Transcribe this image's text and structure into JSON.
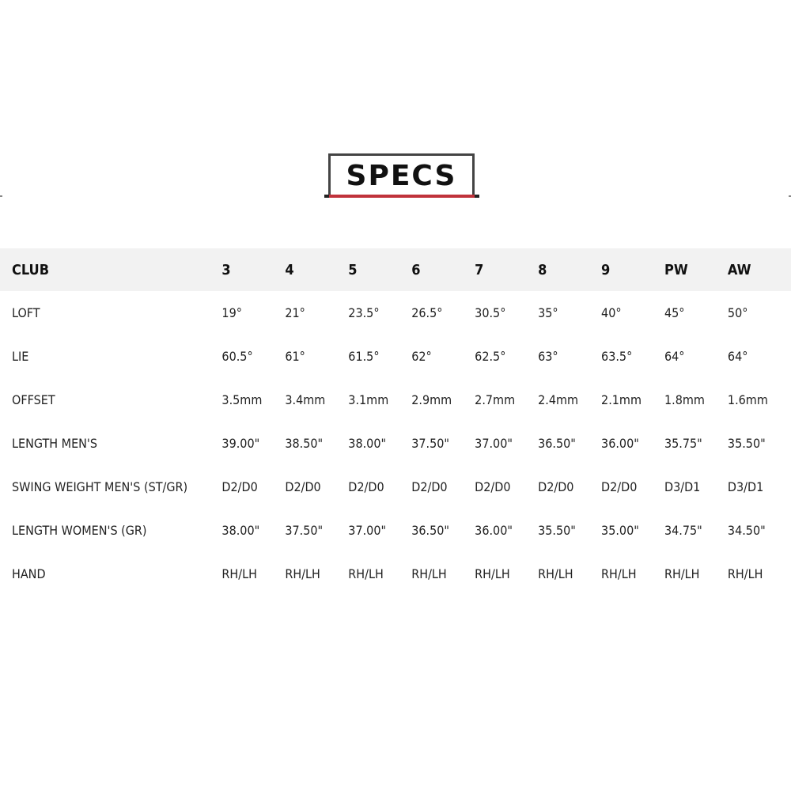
{
  "title": "SPECS",
  "colors": {
    "accent_line": "#c0323b",
    "header_bg": "#f2f2f2"
  },
  "header": {
    "label": "CLUB",
    "columns": [
      "3",
      "4",
      "5",
      "6",
      "7",
      "8",
      "9",
      "PW",
      "AW"
    ]
  },
  "rows": [
    {
      "label": "LOFT",
      "values": [
        "19°",
        "21°",
        "23.5°",
        "26.5°",
        "30.5°",
        "35°",
        "40°",
        "45°",
        "50°"
      ]
    },
    {
      "label": "LIE",
      "values": [
        "60.5°",
        "61°",
        "61.5°",
        "62°",
        "62.5°",
        "63°",
        "63.5°",
        "64°",
        "64°"
      ]
    },
    {
      "label": "OFFSET",
      "values": [
        "3.5mm",
        "3.4mm",
        "3.1mm",
        "2.9mm",
        "2.7mm",
        "2.4mm",
        "2.1mm",
        "1.8mm",
        "1.6mm"
      ]
    },
    {
      "label": "LENGTH MEN'S",
      "values": [
        "39.00\"",
        "38.50\"",
        "38.00\"",
        "37.50\"",
        "37.00\"",
        "36.50\"",
        "36.00\"",
        "35.75\"",
        "35.50\""
      ]
    },
    {
      "label": "SWING WEIGHT MEN'S (ST/GR)",
      "values": [
        "D2/D0",
        "D2/D0",
        "D2/D0",
        "D2/D0",
        "D2/D0",
        "D2/D0",
        "D2/D0",
        "D3/D1",
        "D3/D1"
      ]
    },
    {
      "label": "LENGTH WOMEN'S (GR)",
      "values": [
        "38.00\"",
        "37.50\"",
        "37.00\"",
        "36.50\"",
        "36.00\"",
        "35.50\"",
        "35.00\"",
        "34.75\"",
        "34.50\""
      ]
    },
    {
      "label": "HAND",
      "values": [
        "RH/LH",
        "RH/LH",
        "RH/LH",
        "RH/LH",
        "RH/LH",
        "RH/LH",
        "RH/LH",
        "RH/LH",
        "RH/LH"
      ]
    }
  ]
}
